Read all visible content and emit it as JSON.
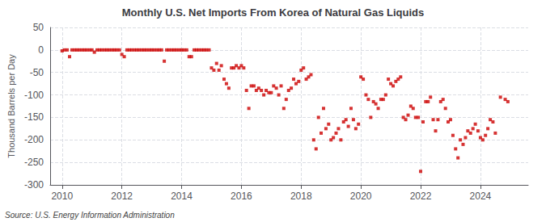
{
  "chart_data": {
    "type": "scatter",
    "title": "Monthly U.S. Net Imports From Korea of Natural Gas Liquids",
    "ylabel": "Thousand Barrels per Day",
    "annotations": [
      "Source: U.S. Energy Information Administration"
    ],
    "color": "#cc0000",
    "marker": "square",
    "grid": true,
    "xlim": [
      2009.6,
      2025.6
    ],
    "xticks": [
      2010,
      2012,
      2014,
      2016,
      2018,
      2020,
      2022,
      2024
    ],
    "ylim": [
      -300,
      50
    ],
    "yticks": [
      50,
      0,
      -50,
      -100,
      -150,
      -200,
      -250,
      -300
    ],
    "x": [
      2010.0,
      2010.08,
      2010.17,
      2010.25,
      2010.33,
      2010.42,
      2010.5,
      2010.58,
      2010.67,
      2010.75,
      2010.83,
      2010.92,
      2011.0,
      2011.08,
      2011.17,
      2011.25,
      2011.33,
      2011.42,
      2011.5,
      2011.58,
      2011.67,
      2011.75,
      2011.83,
      2011.92,
      2012.0,
      2012.08,
      2012.17,
      2012.25,
      2012.33,
      2012.42,
      2012.5,
      2012.58,
      2012.67,
      2012.75,
      2012.83,
      2012.92,
      2013.0,
      2013.08,
      2013.17,
      2013.25,
      2013.33,
      2013.42,
      2013.5,
      2013.58,
      2013.67,
      2013.75,
      2013.83,
      2013.92,
      2014.0,
      2014.08,
      2014.17,
      2014.25,
      2014.33,
      2014.42,
      2014.5,
      2014.58,
      2014.67,
      2014.75,
      2014.83,
      2014.92,
      2015.0,
      2015.08,
      2015.17,
      2015.25,
      2015.33,
      2015.42,
      2015.5,
      2015.58,
      2015.67,
      2015.75,
      2015.83,
      2015.92,
      2016.0,
      2016.08,
      2016.17,
      2016.25,
      2016.33,
      2016.42,
      2016.5,
      2016.58,
      2016.67,
      2016.75,
      2016.83,
      2016.92,
      2017.0,
      2017.08,
      2017.17,
      2017.25,
      2017.33,
      2017.42,
      2017.5,
      2017.58,
      2017.67,
      2017.75,
      2017.83,
      2017.92,
      2018.0,
      2018.08,
      2018.17,
      2018.25,
      2018.33,
      2018.42,
      2018.5,
      2018.58,
      2018.67,
      2018.75,
      2018.83,
      2018.92,
      2019.0,
      2019.08,
      2019.17,
      2019.25,
      2019.33,
      2019.42,
      2019.5,
      2019.58,
      2019.67,
      2019.75,
      2019.83,
      2019.92,
      2020.0,
      2020.08,
      2020.17,
      2020.25,
      2020.33,
      2020.42,
      2020.5,
      2020.58,
      2020.67,
      2020.75,
      2020.83,
      2020.92,
      2021.0,
      2021.08,
      2021.17,
      2021.25,
      2021.33,
      2021.42,
      2021.5,
      2021.58,
      2021.67,
      2021.75,
      2021.83,
      2021.92,
      2022.0,
      2022.08,
      2022.17,
      2022.25,
      2022.33,
      2022.42,
      2022.5,
      2022.58,
      2022.67,
      2022.75,
      2022.83,
      2022.92,
      2023.0,
      2023.08,
      2023.17,
      2023.25,
      2023.33,
      2023.42,
      2023.5,
      2023.58,
      2023.67,
      2023.75,
      2023.83,
      2023.92,
      2024.0,
      2024.08,
      2024.17,
      2024.25,
      2024.33,
      2024.42,
      2024.5,
      2024.67,
      2024.83,
      2024.92
    ],
    "values": [
      -2,
      0,
      0,
      -15,
      0,
      0,
      0,
      0,
      0,
      0,
      0,
      0,
      0,
      -5,
      0,
      0,
      0,
      0,
      0,
      0,
      0,
      0,
      0,
      0,
      -10,
      -15,
      0,
      0,
      0,
      0,
      0,
      0,
      0,
      0,
      0,
      0,
      0,
      0,
      0,
      0,
      0,
      -25,
      0,
      0,
      0,
      0,
      0,
      0,
      0,
      0,
      0,
      -15,
      -15,
      0,
      0,
      0,
      0,
      0,
      0,
      0,
      -40,
      -45,
      -30,
      -45,
      -35,
      -65,
      -75,
      -85,
      -40,
      -40,
      -35,
      -40,
      -35,
      -40,
      -90,
      -130,
      -80,
      -80,
      -90,
      -85,
      -90,
      -100,
      -90,
      -95,
      -95,
      -80,
      -85,
      -100,
      -80,
      -130,
      -110,
      -90,
      -85,
      -65,
      -75,
      -70,
      -45,
      -40,
      -65,
      -60,
      -55,
      -200,
      -220,
      -150,
      -185,
      -130,
      -175,
      -165,
      -200,
      -195,
      -185,
      -175,
      -200,
      -160,
      -155,
      -170,
      -130,
      -155,
      -175,
      -165,
      -60,
      -65,
      -100,
      -110,
      -150,
      -115,
      -120,
      -130,
      -110,
      -110,
      -100,
      -65,
      -75,
      -80,
      -70,
      -65,
      -60,
      -150,
      -155,
      -145,
      -125,
      -130,
      -150,
      -150,
      -270,
      -160,
      -115,
      -115,
      -105,
      -155,
      -180,
      -155,
      -115,
      -110,
      -130,
      -160,
      -155,
      -190,
      -220,
      -240,
      -200,
      -210,
      -195,
      -180,
      -185,
      -175,
      -165,
      -180,
      -195,
      -200,
      -190,
      -175,
      -155,
      -160,
      -185,
      -105,
      -110,
      -115
    ]
  }
}
